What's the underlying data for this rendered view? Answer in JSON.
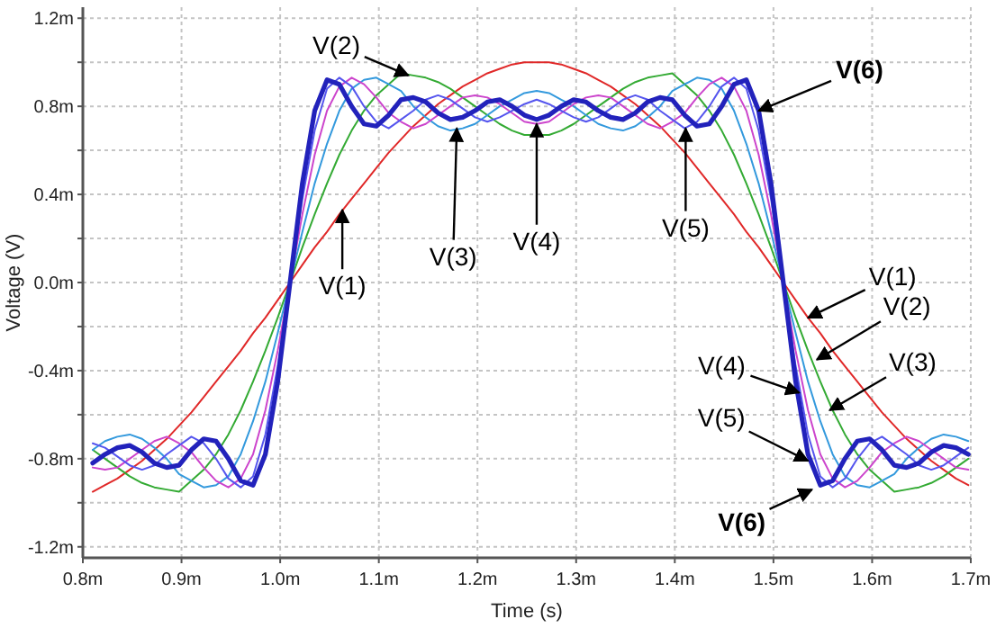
{
  "chart_data": {
    "type": "line",
    "xlabel": "Time (s)",
    "ylabel": "Voltage (V)",
    "grid": true,
    "line_style": "solid",
    "marker": "none",
    "xlim": [
      0.8,
      1.7
    ],
    "ylim": [
      -1.25,
      1.25
    ],
    "xticks": [
      {
        "value": 0.8,
        "label": "0.8m"
      },
      {
        "value": 0.9,
        "label": "0.9m"
      },
      {
        "value": 1.0,
        "label": "1.0m"
      },
      {
        "value": 1.1,
        "label": "1.1m"
      },
      {
        "value": 1.2,
        "label": "1.2m"
      },
      {
        "value": 1.3,
        "label": "1.3m"
      },
      {
        "value": 1.4,
        "label": "1.4m"
      },
      {
        "value": 1.5,
        "label": "1.5m"
      },
      {
        "value": 1.6,
        "label": "1.6m"
      },
      {
        "value": 1.7,
        "label": "1.7m"
      }
    ],
    "yticks": [
      {
        "value": -1.2,
        "label": "-1.2m"
      },
      {
        "value": -1.0,
        "label": null
      },
      {
        "value": -0.8,
        "label": "-0.8m"
      },
      {
        "value": -0.6,
        "label": null
      },
      {
        "value": -0.4,
        "label": "-0.4m"
      },
      {
        "value": -0.2,
        "label": null
      },
      {
        "value": 0,
        "label": "0.0m"
      },
      {
        "value": 0.2,
        "label": null
      },
      {
        "value": 0.4,
        "label": "0.4m"
      },
      {
        "value": 0.6,
        "label": null
      },
      {
        "value": 0.8,
        "label": "0.8m"
      },
      {
        "value": 1.0,
        "label": null
      },
      {
        "value": 1.2,
        "label": "1.2m"
      }
    ],
    "x": [
      0.81,
      0.8225,
      0.835,
      0.8475,
      0.86,
      0.8725,
      0.885,
      0.8975,
      0.91,
      0.9225,
      0.935,
      0.9475,
      0.96,
      0.9725,
      0.985,
      0.9975,
      1.01,
      1.0225,
      1.035,
      1.0475,
      1.06,
      1.0725,
      1.085,
      1.0975,
      1.11,
      1.1225,
      1.135,
      1.1475,
      1.16,
      1.1725,
      1.185,
      1.1975,
      1.21,
      1.2225,
      1.235,
      1.2475,
      1.26,
      1.2725,
      1.285,
      1.2975,
      1.31,
      1.3225,
      1.335,
      1.3475,
      1.36,
      1.3725,
      1.385,
      1.3975,
      1.41,
      1.4225,
      1.435,
      1.4475,
      1.46,
      1.4725,
      1.485,
      1.4975,
      1.51,
      1.5225,
      1.535,
      1.5475,
      1.56,
      1.5725,
      1.585,
      1.5975,
      1.61,
      1.6225,
      1.635,
      1.6475,
      1.66,
      1.6725,
      1.685,
      1.6975
    ],
    "series": [
      {
        "color": "#e02828",
        "values": [
          -0.95,
          -0.92,
          -0.89,
          -0.85,
          -0.81,
          -0.76,
          -0.71,
          -0.65,
          -0.59,
          -0.52,
          -0.45,
          -0.38,
          -0.31,
          -0.23,
          -0.16,
          -0.08,
          0,
          0.08,
          0.16,
          0.23,
          0.31,
          0.38,
          0.45,
          0.52,
          0.59,
          0.65,
          0.71,
          0.76,
          0.81,
          0.85,
          0.89,
          0.92,
          0.95,
          0.97,
          0.99,
          1.0,
          1.0,
          1.0,
          0.99,
          0.97,
          0.95,
          0.92,
          0.89,
          0.85,
          0.81,
          0.76,
          0.71,
          0.65,
          0.59,
          0.52,
          0.45,
          0.38,
          0.31,
          0.23,
          0.16,
          0.08,
          0,
          -0.08,
          -0.16,
          -0.23,
          -0.31,
          -0.38,
          -0.45,
          -0.52,
          -0.59,
          -0.65,
          -0.71,
          -0.76,
          -0.81,
          -0.85,
          -0.89,
          -0.92
        ]
      },
      {
        "color": "#33aa33",
        "values": [
          -0.76,
          -0.8,
          -0.84,
          -0.88,
          -0.91,
          -0.93,
          -0.94,
          -0.95,
          -0.9,
          -0.85,
          -0.78,
          -0.69,
          -0.58,
          -0.45,
          -0.31,
          -0.16,
          0,
          0.16,
          0.31,
          0.45,
          0.58,
          0.69,
          0.78,
          0.85,
          0.9,
          0.95,
          0.94,
          0.93,
          0.91,
          0.88,
          0.84,
          0.8,
          0.76,
          0.72,
          0.69,
          0.67,
          0.67,
          0.67,
          0.69,
          0.72,
          0.76,
          0.8,
          0.84,
          0.88,
          0.91,
          0.93,
          0.94,
          0.95,
          0.9,
          0.85,
          0.78,
          0.69,
          0.58,
          0.45,
          0.31,
          0.16,
          0,
          -0.16,
          -0.31,
          -0.45,
          -0.58,
          -0.69,
          -0.78,
          -0.85,
          -0.9,
          -0.95,
          -0.94,
          -0.93,
          -0.91,
          -0.88,
          -0.84,
          -0.8
        ]
      },
      {
        "color": "#3399dd",
        "values": [
          -0.76,
          -0.72,
          -0.7,
          -0.69,
          -0.71,
          -0.75,
          -0.8,
          -0.87,
          -0.9,
          -0.93,
          -0.92,
          -0.88,
          -0.78,
          -0.63,
          -0.45,
          -0.23,
          0,
          0.23,
          0.45,
          0.63,
          0.78,
          0.88,
          0.92,
          0.93,
          0.9,
          0.87,
          0.8,
          0.75,
          0.71,
          0.69,
          0.7,
          0.72,
          0.76,
          0.8,
          0.83,
          0.86,
          0.87,
          0.86,
          0.83,
          0.8,
          0.76,
          0.72,
          0.7,
          0.69,
          0.71,
          0.75,
          0.8,
          0.87,
          0.9,
          0.93,
          0.92,
          0.88,
          0.78,
          0.63,
          0.45,
          0.23,
          0,
          -0.23,
          -0.45,
          -0.63,
          -0.78,
          -0.88,
          -0.92,
          -0.93,
          -0.9,
          -0.87,
          -0.8,
          -0.75,
          -0.71,
          -0.69,
          -0.7,
          -0.72
        ]
      },
      {
        "color": "#cc44cc",
        "values": [
          -0.84,
          -0.85,
          -0.84,
          -0.8,
          -0.76,
          -0.72,
          -0.7,
          -0.73,
          -0.77,
          -0.84,
          -0.9,
          -0.93,
          -0.89,
          -0.78,
          -0.58,
          -0.31,
          0,
          0.31,
          0.58,
          0.78,
          0.89,
          0.93,
          0.9,
          0.84,
          0.77,
          0.73,
          0.7,
          0.72,
          0.76,
          0.8,
          0.84,
          0.85,
          0.84,
          0.81,
          0.77,
          0.73,
          0.72,
          0.73,
          0.77,
          0.81,
          0.84,
          0.85,
          0.84,
          0.8,
          0.76,
          0.72,
          0.7,
          0.73,
          0.77,
          0.84,
          0.9,
          0.93,
          0.89,
          0.78,
          0.58,
          0.31,
          0,
          -0.31,
          -0.58,
          -0.78,
          -0.89,
          -0.93,
          -0.9,
          -0.84,
          -0.77,
          -0.73,
          -0.7,
          -0.72,
          -0.76,
          -0.8,
          -0.84,
          -0.85
        ]
      },
      {
        "color": "#5555ee",
        "values": [
          -0.73,
          -0.75,
          -0.79,
          -0.83,
          -0.85,
          -0.83,
          -0.78,
          -0.74,
          -0.7,
          -0.73,
          -0.8,
          -0.89,
          -0.93,
          -0.88,
          -0.69,
          -0.38,
          0,
          0.38,
          0.69,
          0.88,
          0.93,
          0.89,
          0.8,
          0.73,
          0.7,
          0.74,
          0.78,
          0.83,
          0.85,
          0.83,
          0.79,
          0.75,
          0.73,
          0.75,
          0.78,
          0.81,
          0.83,
          0.81,
          0.78,
          0.75,
          0.73,
          0.75,
          0.79,
          0.83,
          0.85,
          0.83,
          0.78,
          0.74,
          0.7,
          0.73,
          0.8,
          0.89,
          0.93,
          0.88,
          0.69,
          0.38,
          0,
          -0.38,
          -0.69,
          -0.88,
          -0.93,
          -0.89,
          -0.8,
          -0.73,
          -0.7,
          -0.74,
          -0.78,
          -0.83,
          -0.85,
          -0.83,
          -0.79,
          -0.75
        ]
      },
      {
        "color": "#2222bb",
        "values": [
          -0.82,
          -0.78,
          -0.75,
          -0.74,
          -0.77,
          -0.82,
          -0.84,
          -0.83,
          -0.76,
          -0.71,
          -0.72,
          -0.8,
          -0.9,
          -0.92,
          -0.78,
          -0.45,
          0,
          0.45,
          0.78,
          0.92,
          0.9,
          0.8,
          0.72,
          0.71,
          0.76,
          0.83,
          0.84,
          0.82,
          0.77,
          0.74,
          0.75,
          0.78,
          0.82,
          0.83,
          0.8,
          0.76,
          0.74,
          0.76,
          0.8,
          0.83,
          0.82,
          0.78,
          0.75,
          0.74,
          0.77,
          0.82,
          0.84,
          0.83,
          0.76,
          0.71,
          0.72,
          0.8,
          0.9,
          0.92,
          0.78,
          0.45,
          0,
          -0.45,
          -0.78,
          -0.92,
          -0.9,
          -0.8,
          -0.72,
          -0.71,
          -0.76,
          -0.83,
          -0.84,
          -0.82,
          -0.77,
          -0.74,
          -0.75,
          -0.78
        ]
      }
    ],
    "annotations": [
      {
        "text": "V(2)",
        "x": 1.13,
        "y": 0.94
      },
      {
        "text": "V(6)",
        "x": 1.485,
        "y": 0.78
      },
      {
        "text": "V(1)",
        "x": 1.063,
        "y": 0.33
      },
      {
        "text": "V(3)",
        "x": 1.179,
        "y": 0.7
      },
      {
        "text": "V(4)",
        "x": 1.26,
        "y": 0.72
      },
      {
        "text": "V(5)",
        "x": 1.411,
        "y": 0.7
      },
      {
        "text": "V(1)",
        "x": 1.535,
        "y": -0.16
      },
      {
        "text": "V(2)",
        "x": 1.544,
        "y": -0.35
      },
      {
        "text": "V(3)",
        "x": 1.557,
        "y": -0.58
      },
      {
        "text": "V(4)",
        "x": 1.526,
        "y": -0.5
      },
      {
        "text": "V(5)",
        "x": 1.535,
        "y": -0.81
      },
      {
        "text": "V(6)",
        "x": 1.539,
        "y": -0.94
      }
    ]
  }
}
